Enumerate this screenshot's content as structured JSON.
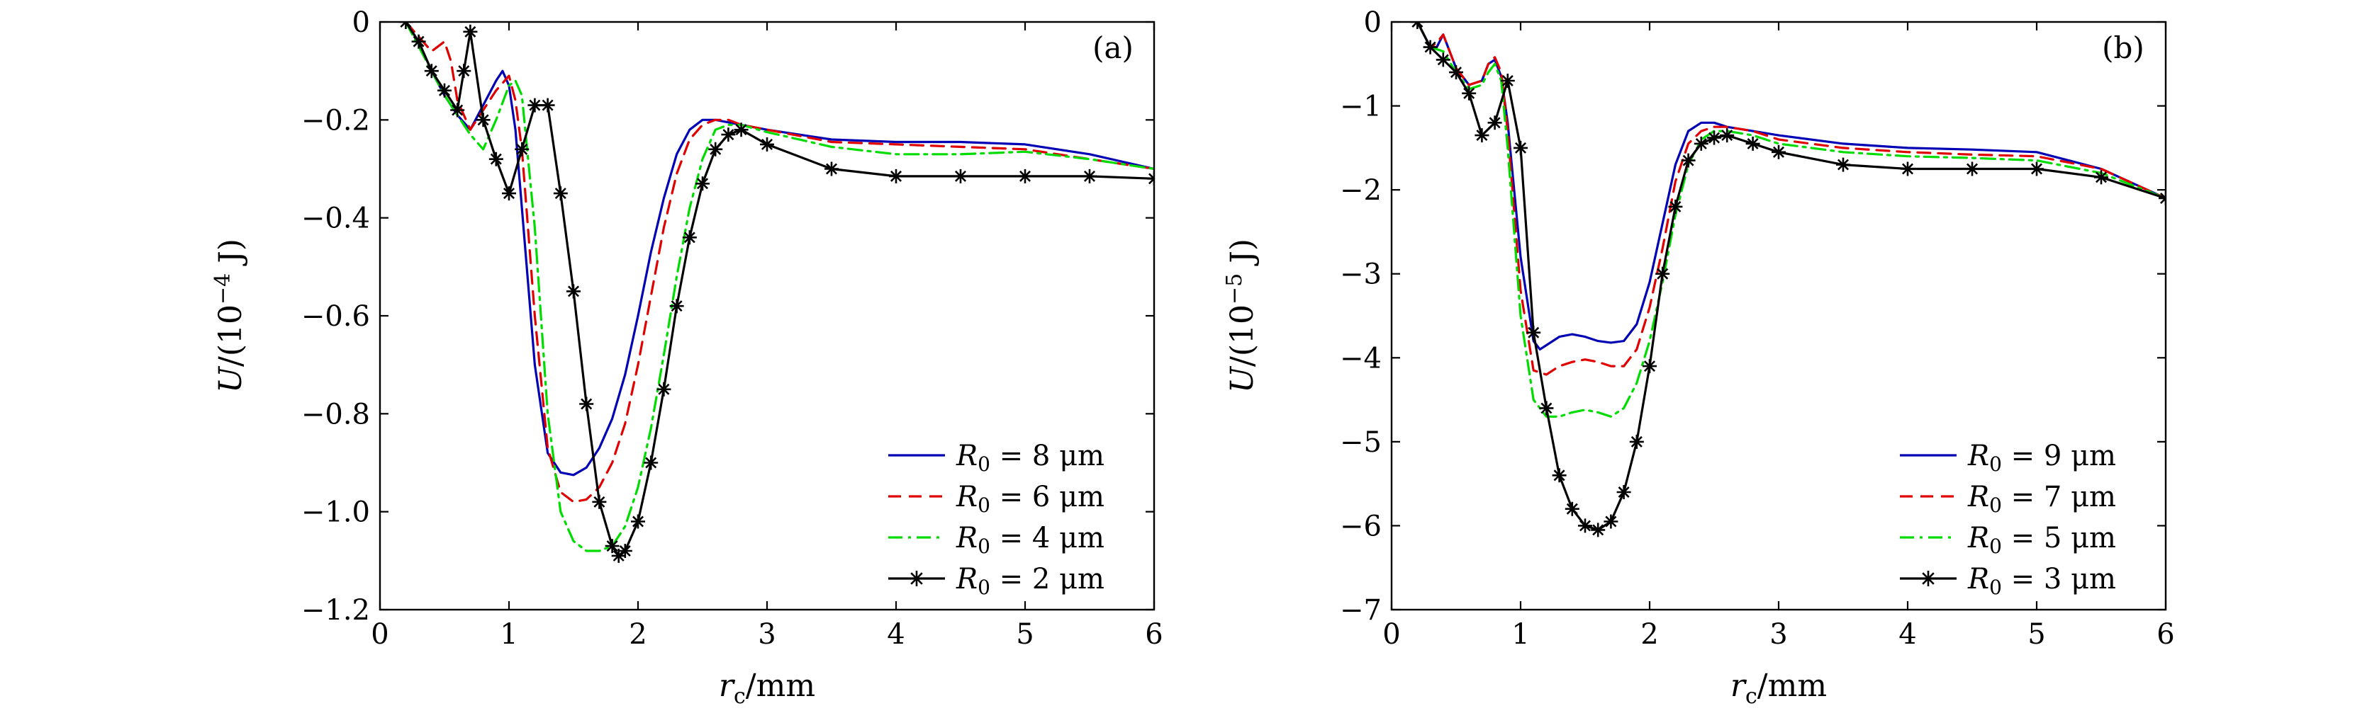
{
  "chart_data": [
    {
      "type": "line",
      "panel_label": "(a)",
      "xlabel": "r_c/mm",
      "xlabel_main": "r",
      "xlabel_sub": "c",
      "xlabel_unit": "/mm",
      "ylabel": "U/(10^-4 J)",
      "ylabel_parts": [
        "U",
        "/(10",
        "−4",
        " J)"
      ],
      "xlim": [
        0,
        6
      ],
      "ylim": [
        -1.2,
        0
      ],
      "xticks": [
        0,
        1,
        2,
        3,
        4,
        5,
        6
      ],
      "xtick_labels": [
        "0",
        "1",
        "2",
        "3",
        "4",
        "5",
        "6"
      ],
      "yticks": [
        0,
        -0.2,
        -0.4,
        -0.6,
        -0.8,
        -1.0,
        -1.2
      ],
      "ytick_labels": [
        "0",
        "−0.2",
        "−0.4",
        "−0.6",
        "−0.8",
        "−1.0",
        "−1.2"
      ],
      "legend_position": "bottom-right",
      "series": [
        {
          "name": "R0 = 8 μm",
          "legend_symbol": "R",
          "legend_sub": "0",
          "legend_value": " = 8 μm",
          "color": "#0000b4",
          "style": "solid",
          "marker": "none",
          "x": [
            0.2,
            0.3,
            0.4,
            0.5,
            0.6,
            0.7,
            0.8,
            0.9,
            0.95,
            1.0,
            1.05,
            1.1,
            1.2,
            1.3,
            1.4,
            1.5,
            1.6,
            1.7,
            1.8,
            1.9,
            2.0,
            2.1,
            2.2,
            2.3,
            2.4,
            2.5,
            2.6,
            2.7,
            2.8,
            3.0,
            3.5,
            4.0,
            4.5,
            5.0,
            5.5,
            6.0
          ],
          "y": [
            0,
            -0.04,
            -0.1,
            -0.15,
            -0.19,
            -0.22,
            -0.17,
            -0.12,
            -0.1,
            -0.13,
            -0.22,
            -0.38,
            -0.7,
            -0.88,
            -0.92,
            -0.925,
            -0.91,
            -0.87,
            -0.81,
            -0.72,
            -0.6,
            -0.47,
            -0.36,
            -0.27,
            -0.22,
            -0.2,
            -0.2,
            -0.205,
            -0.21,
            -0.22,
            -0.24,
            -0.245,
            -0.245,
            -0.25,
            -0.27,
            -0.3
          ]
        },
        {
          "name": "R0 = 6 μm",
          "legend_symbol": "R",
          "legend_sub": "0",
          "legend_value": " = 6 μm",
          "color": "#e00000",
          "style": "dashed",
          "marker": "none",
          "x": [
            0.2,
            0.3,
            0.4,
            0.5,
            0.55,
            0.6,
            0.7,
            0.8,
            0.9,
            1.0,
            1.05,
            1.1,
            1.2,
            1.3,
            1.4,
            1.5,
            1.6,
            1.7,
            1.8,
            1.9,
            2.0,
            2.1,
            2.2,
            2.3,
            2.4,
            2.5,
            2.6,
            2.7,
            2.8,
            3.0,
            3.5,
            4.0,
            4.5,
            5.0,
            5.5,
            6.0
          ],
          "y": [
            0,
            -0.03,
            -0.06,
            -0.04,
            -0.08,
            -0.16,
            -0.22,
            -0.18,
            -0.14,
            -0.11,
            -0.16,
            -0.26,
            -0.6,
            -0.87,
            -0.96,
            -0.98,
            -0.975,
            -0.95,
            -0.9,
            -0.82,
            -0.7,
            -0.56,
            -0.42,
            -0.31,
            -0.24,
            -0.21,
            -0.2,
            -0.2,
            -0.21,
            -0.22,
            -0.245,
            -0.25,
            -0.255,
            -0.26,
            -0.28,
            -0.3
          ]
        },
        {
          "name": "R0 = 4 μm",
          "legend_symbol": "R",
          "legend_sub": "0",
          "legend_value": " = 4 μm",
          "color": "#00dc00",
          "style": "dashdot",
          "marker": "none",
          "x": [
            0.2,
            0.3,
            0.4,
            0.5,
            0.6,
            0.7,
            0.8,
            0.9,
            1.0,
            1.05,
            1.1,
            1.2,
            1.3,
            1.4,
            1.5,
            1.6,
            1.7,
            1.8,
            1.9,
            2.0,
            2.1,
            2.2,
            2.3,
            2.4,
            2.5,
            2.6,
            2.7,
            2.8,
            3.0,
            3.5,
            4.0,
            4.5,
            5.0,
            5.5,
            6.0
          ],
          "y": [
            0,
            -0.05,
            -0.1,
            -0.15,
            -0.19,
            -0.23,
            -0.26,
            -0.2,
            -0.13,
            -0.12,
            -0.15,
            -0.42,
            -0.8,
            -1.0,
            -1.06,
            -1.08,
            -1.08,
            -1.07,
            -1.03,
            -0.95,
            -0.83,
            -0.68,
            -0.52,
            -0.38,
            -0.28,
            -0.22,
            -0.21,
            -0.21,
            -0.225,
            -0.255,
            -0.27,
            -0.27,
            -0.265,
            -0.28,
            -0.3
          ]
        },
        {
          "name": "R0 = 2 μm",
          "legend_symbol": "R",
          "legend_sub": "0",
          "legend_value": " = 2 μm",
          "color": "#000000",
          "style": "solid",
          "marker": "star",
          "x": [
            0.2,
            0.3,
            0.4,
            0.5,
            0.6,
            0.65,
            0.7,
            0.8,
            0.9,
            1.0,
            1.1,
            1.2,
            1.3,
            1.4,
            1.5,
            1.6,
            1.7,
            1.8,
            1.85,
            1.9,
            2.0,
            2.1,
            2.2,
            2.3,
            2.4,
            2.5,
            2.6,
            2.7,
            2.8,
            3.0,
            3.5,
            4.0,
            4.5,
            5.0,
            5.5,
            6.0
          ],
          "y": [
            0,
            -0.04,
            -0.1,
            -0.14,
            -0.18,
            -0.1,
            -0.02,
            -0.2,
            -0.28,
            -0.35,
            -0.26,
            -0.17,
            -0.17,
            -0.35,
            -0.55,
            -0.78,
            -0.98,
            -1.07,
            -1.09,
            -1.08,
            -1.02,
            -0.9,
            -0.75,
            -0.58,
            -0.44,
            -0.33,
            -0.26,
            -0.23,
            -0.22,
            -0.25,
            -0.3,
            -0.315,
            -0.315,
            -0.315,
            -0.315,
            -0.32
          ]
        }
      ]
    },
    {
      "type": "line",
      "panel_label": "(b)",
      "xlabel": "r_c/mm",
      "xlabel_main": "r",
      "xlabel_sub": "c",
      "xlabel_unit": "/mm",
      "ylabel": "U/(10^-5 J)",
      "ylabel_parts": [
        "U",
        "/(10",
        "−5",
        " J)"
      ],
      "xlim": [
        0,
        6
      ],
      "ylim": [
        -7,
        0
      ],
      "xticks": [
        0,
        1,
        2,
        3,
        4,
        5,
        6
      ],
      "xtick_labels": [
        "0",
        "1",
        "2",
        "3",
        "4",
        "5",
        "6"
      ],
      "yticks": [
        0,
        -1,
        -2,
        -3,
        -4,
        -5,
        -6,
        -7
      ],
      "ytick_labels": [
        "0",
        "−1",
        "−2",
        "−3",
        "−4",
        "−5",
        "−6",
        "−7"
      ],
      "legend_position": "bottom-right",
      "series": [
        {
          "name": "R0 = 9 μm",
          "legend_symbol": "R",
          "legend_sub": "0",
          "legend_value": " = 9 μm",
          "color": "#0000b4",
          "style": "solid",
          "marker": "none",
          "x": [
            0.2,
            0.3,
            0.35,
            0.4,
            0.5,
            0.6,
            0.7,
            0.75,
            0.8,
            0.85,
            0.9,
            1.0,
            1.1,
            1.15,
            1.2,
            1.3,
            1.4,
            1.5,
            1.6,
            1.7,
            1.8,
            1.9,
            2.0,
            2.1,
            2.2,
            2.3,
            2.4,
            2.5,
            2.6,
            2.8,
            3.0,
            3.5,
            4.0,
            4.5,
            5.0,
            5.5,
            6.0
          ],
          "y": [
            0,
            -0.3,
            -0.3,
            -0.15,
            -0.55,
            -0.75,
            -0.7,
            -0.5,
            -0.45,
            -0.65,
            -1.2,
            -2.8,
            -3.8,
            -3.9,
            -3.85,
            -3.75,
            -3.72,
            -3.75,
            -3.8,
            -3.82,
            -3.8,
            -3.6,
            -3.1,
            -2.4,
            -1.7,
            -1.3,
            -1.2,
            -1.2,
            -1.25,
            -1.3,
            -1.35,
            -1.45,
            -1.5,
            -1.52,
            -1.55,
            -1.75,
            -2.1
          ]
        },
        {
          "name": "R0 = 7 μm",
          "legend_symbol": "R",
          "legend_sub": "0",
          "legend_value": " = 7 μm",
          "color": "#e00000",
          "style": "dashed",
          "marker": "none",
          "x": [
            0.2,
            0.3,
            0.35,
            0.4,
            0.5,
            0.6,
            0.7,
            0.75,
            0.8,
            0.85,
            0.9,
            1.0,
            1.1,
            1.2,
            1.3,
            1.4,
            1.5,
            1.6,
            1.7,
            1.8,
            1.9,
            2.0,
            2.1,
            2.2,
            2.3,
            2.4,
            2.5,
            2.6,
            2.8,
            3.0,
            3.5,
            4.0,
            4.5,
            5.0,
            5.5,
            6.0
          ],
          "y": [
            0,
            -0.3,
            -0.25,
            -0.15,
            -0.55,
            -0.75,
            -0.7,
            -0.5,
            -0.42,
            -0.6,
            -1.3,
            -3.2,
            -4.15,
            -4.2,
            -4.1,
            -4.05,
            -4.02,
            -4.05,
            -4.1,
            -4.1,
            -3.9,
            -3.4,
            -2.7,
            -1.9,
            -1.45,
            -1.3,
            -1.25,
            -1.25,
            -1.3,
            -1.4,
            -1.5,
            -1.55,
            -1.58,
            -1.6,
            -1.75,
            -2.1
          ]
        },
        {
          "name": "R0 = 5 μm",
          "legend_symbol": "R",
          "legend_sub": "0",
          "legend_value": " = 5 μm",
          "color": "#00dc00",
          "style": "dashdot",
          "marker": "none",
          "x": [
            0.2,
            0.3,
            0.4,
            0.5,
            0.6,
            0.7,
            0.75,
            0.8,
            0.85,
            0.9,
            1.0,
            1.1,
            1.2,
            1.3,
            1.4,
            1.5,
            1.6,
            1.7,
            1.8,
            1.9,
            2.0,
            2.1,
            2.2,
            2.3,
            2.4,
            2.5,
            2.6,
            2.8,
            3.0,
            3.5,
            4.0,
            4.5,
            5.0,
            5.5,
            6.0
          ],
          "y": [
            0,
            -0.3,
            -0.35,
            -0.6,
            -0.8,
            -0.75,
            -0.6,
            -0.5,
            -0.7,
            -1.5,
            -3.5,
            -4.5,
            -4.7,
            -4.7,
            -4.65,
            -4.62,
            -4.65,
            -4.7,
            -4.6,
            -4.3,
            -3.8,
            -3.1,
            -2.3,
            -1.7,
            -1.4,
            -1.3,
            -1.3,
            -1.35,
            -1.45,
            -1.55,
            -1.6,
            -1.62,
            -1.65,
            -1.8,
            -2.1
          ]
        },
        {
          "name": "R0 = 3 μm",
          "legend_symbol": "R",
          "legend_sub": "0",
          "legend_value": " = 3 μm",
          "color": "#000000",
          "style": "solid",
          "marker": "star",
          "x": [
            0.2,
            0.3,
            0.4,
            0.5,
            0.6,
            0.7,
            0.8,
            0.9,
            1.0,
            1.1,
            1.2,
            1.3,
            1.4,
            1.5,
            1.6,
            1.7,
            1.8,
            1.9,
            2.0,
            2.1,
            2.2,
            2.3,
            2.4,
            2.5,
            2.6,
            2.8,
            3.0,
            3.5,
            4.0,
            4.5,
            5.0,
            5.5,
            6.0
          ],
          "y": [
            0,
            -0.3,
            -0.45,
            -0.6,
            -0.85,
            -1.35,
            -1.2,
            -0.7,
            -1.5,
            -3.7,
            -4.6,
            -5.4,
            -5.8,
            -6.0,
            -6.05,
            -5.95,
            -5.6,
            -5.0,
            -4.1,
            -3.0,
            -2.2,
            -1.65,
            -1.45,
            -1.38,
            -1.35,
            -1.45,
            -1.55,
            -1.7,
            -1.75,
            -1.75,
            -1.75,
            -1.85,
            -2.1
          ]
        }
      ]
    }
  ]
}
